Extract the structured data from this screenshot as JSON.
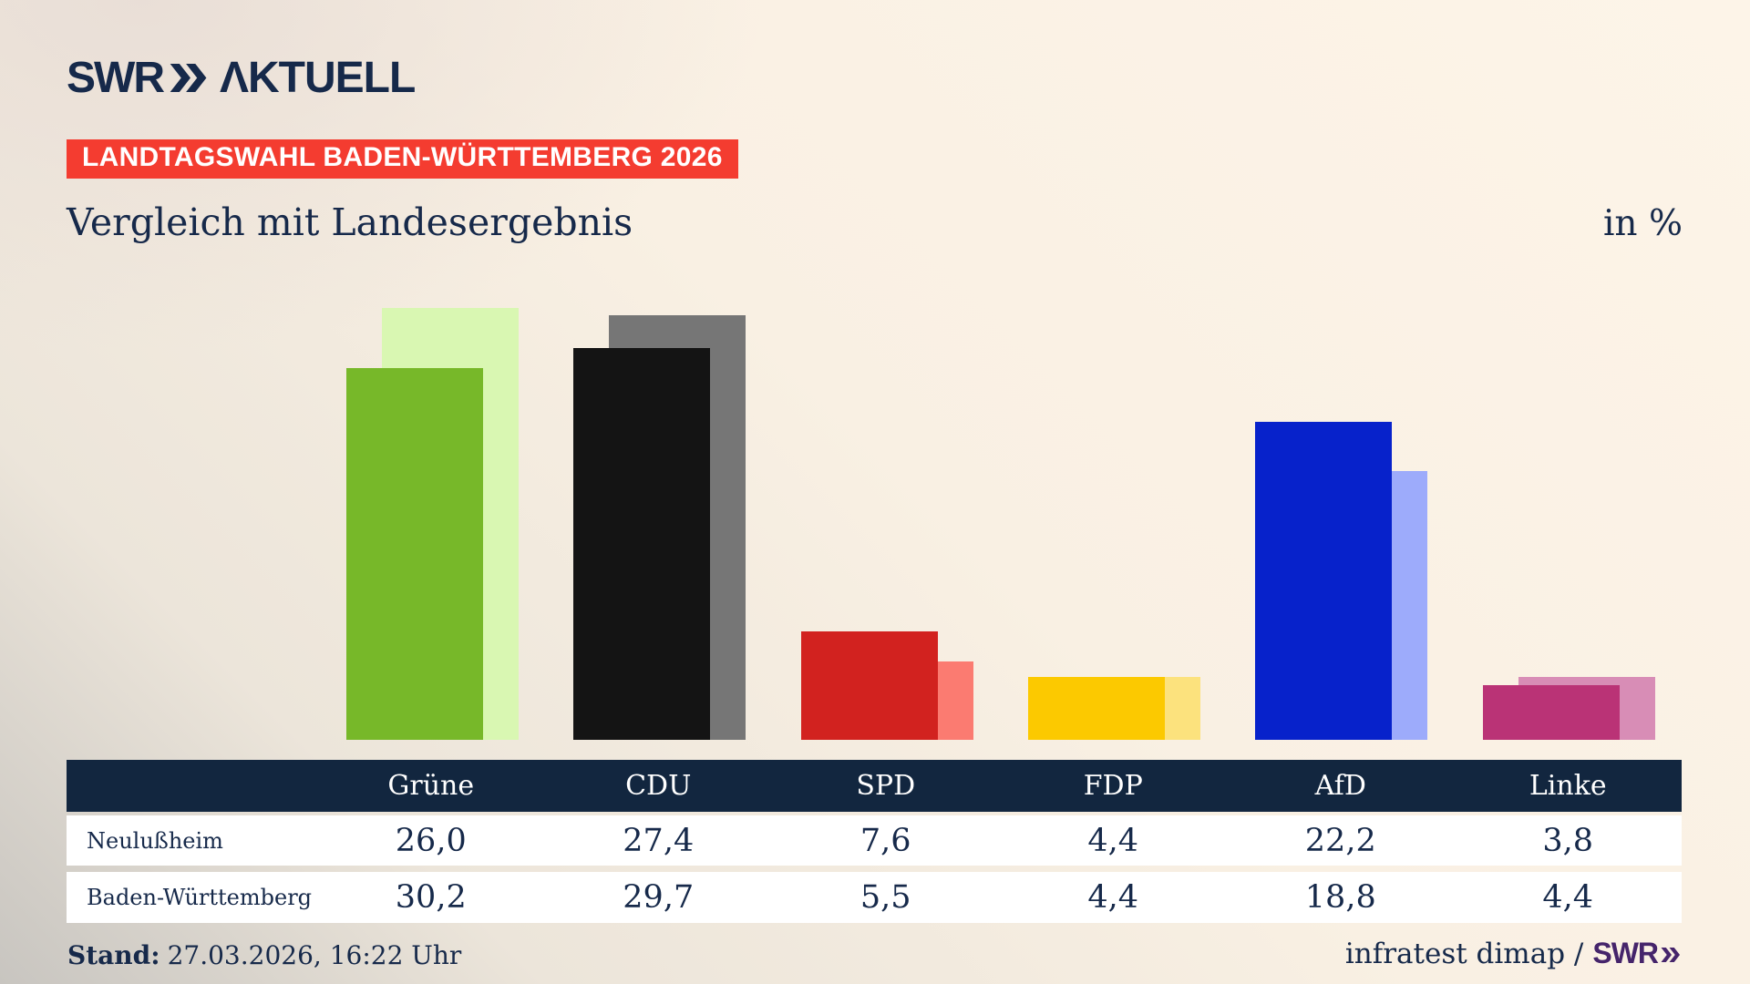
{
  "brand": {
    "name": "SWR",
    "suffix": "AKTUELL",
    "color": "#16294a"
  },
  "badge": {
    "label": "LANDTAGSWAHL BADEN-WÜRTTEMBERG 2026",
    "bg_color": "#f43c30",
    "text_color": "#ffffff"
  },
  "title": "Vergleich mit Landesergebnis",
  "unit_label": "in %",
  "chart_data": {
    "type": "bar",
    "title": "Vergleich mit Landesergebnis",
    "unit": "%",
    "categories": [
      "Grüne",
      "CDU",
      "SPD",
      "FDP",
      "AfD",
      "Linke"
    ],
    "series": [
      {
        "name": "Neulußheim",
        "role": "foreground-bar",
        "values": [
          26.0,
          27.4,
          7.6,
          4.4,
          22.2,
          3.8
        ]
      },
      {
        "name": "Baden-Württemberg",
        "role": "background-offset-bar",
        "values": [
          30.2,
          29.7,
          5.5,
          4.4,
          18.8,
          4.4
        ]
      }
    ],
    "party_colors": [
      {
        "party": "Grüne",
        "foreground": "#77b829",
        "background": "#d9f7b2"
      },
      {
        "party": "CDU",
        "foreground": "#141414",
        "background": "#767676"
      },
      {
        "party": "SPD",
        "foreground": "#d2221f",
        "background": "#fb7b71"
      },
      {
        "party": "FDP",
        "foreground": "#fcc900",
        "background": "#fce27d"
      },
      {
        "party": "AfD",
        "foreground": "#0722cb",
        "background": "#9dabfb"
      },
      {
        "party": "Linke",
        "foreground": "#ba3376",
        "background": "#d88db6"
      }
    ],
    "ylim": [
      0,
      31
    ],
    "grid": false,
    "axis_labels_visible": false,
    "legend_position": "table-below"
  },
  "table": {
    "header": [
      "Grüne",
      "CDU",
      "SPD",
      "FDP",
      "AfD",
      "Linke"
    ],
    "rows": [
      {
        "label": "Neulußheim",
        "values": [
          "26,0",
          "27,4",
          "7,6",
          "4,4",
          "22,2",
          "3,8"
        ]
      },
      {
        "label": "Baden-Württemberg",
        "values": [
          "30,2",
          "29,7",
          "5,5",
          "4,4",
          "18,8",
          "4,4"
        ]
      }
    ],
    "header_bg": "#12263f",
    "row_bg": "#ffffff"
  },
  "footer": {
    "stand_label": "Stand:",
    "stand_value": "27.03.2026, 16:22 Uhr",
    "source_text": "infratest dimap /",
    "source_brand": "SWR",
    "source_brand_color": "#45246b"
  }
}
